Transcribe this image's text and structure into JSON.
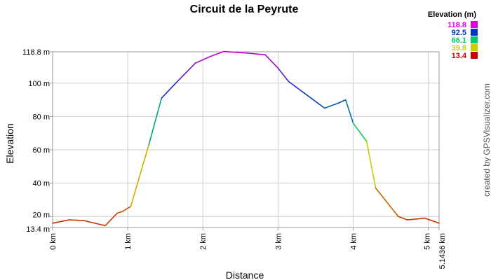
{
  "chart_data": {
    "type": "line",
    "title": "Circuit de la Peyrute",
    "xlabel": "Distance",
    "ylabel": "Elevation",
    "xlim": [
      0,
      5.1436
    ],
    "ylim": [
      13.4,
      118.8
    ],
    "x_ticks": [
      {
        "value": 0,
        "label": "0 km"
      },
      {
        "value": 1,
        "label": "1 km"
      },
      {
        "value": 2,
        "label": "2 km"
      },
      {
        "value": 3,
        "label": "3 km"
      },
      {
        "value": 4,
        "label": "4 km"
      },
      {
        "value": 5,
        "label": "5 km"
      },
      {
        "value": 5.1436,
        "label": "5.1436 km"
      }
    ],
    "y_ticks": [
      {
        "value": 13.4,
        "label": "13.4 m"
      },
      {
        "value": 20,
        "label": "20 m"
      },
      {
        "value": 40,
        "label": "40 m"
      },
      {
        "value": 60,
        "label": "60 m"
      },
      {
        "value": 80,
        "label": "80 m"
      },
      {
        "value": 100,
        "label": "100 m"
      },
      {
        "value": 118.8,
        "label": "118.8 m"
      }
    ],
    "grid": true,
    "x": [
      0,
      0.22,
      0.42,
      0.7,
      0.86,
      0.93,
      1.04,
      1.28,
      1.45,
      1.66,
      1.9,
      2.1,
      2.28,
      2.6,
      2.83,
      3.0,
      3.14,
      3.35,
      3.62,
      3.8,
      3.9,
      4.0,
      4.18,
      4.3,
      4.6,
      4.72,
      4.85,
      4.95,
      5.1436
    ],
    "y": [
      16,
      18,
      17.5,
      14.5,
      22,
      23,
      26,
      63,
      91,
      101,
      112,
      116,
      119,
      118,
      117,
      109,
      101,
      94,
      85,
      88,
      90,
      76,
      65,
      37,
      20,
      18,
      18.5,
      19,
      16
    ],
    "legend": {
      "title": "Elevation (m)",
      "position": "top-right",
      "entries": [
        {
          "label": "118.8",
          "color": "#dd00dd"
        },
        {
          "label": "92.5",
          "color": "#0033cc"
        },
        {
          "label": "66.1",
          "color": "#00cc66"
        },
        {
          "label": "39.8",
          "color": "#cccc00"
        },
        {
          "label": "13.4",
          "color": "#cc0000"
        }
      ]
    }
  },
  "credit": "created by GPSVisualizer.com"
}
